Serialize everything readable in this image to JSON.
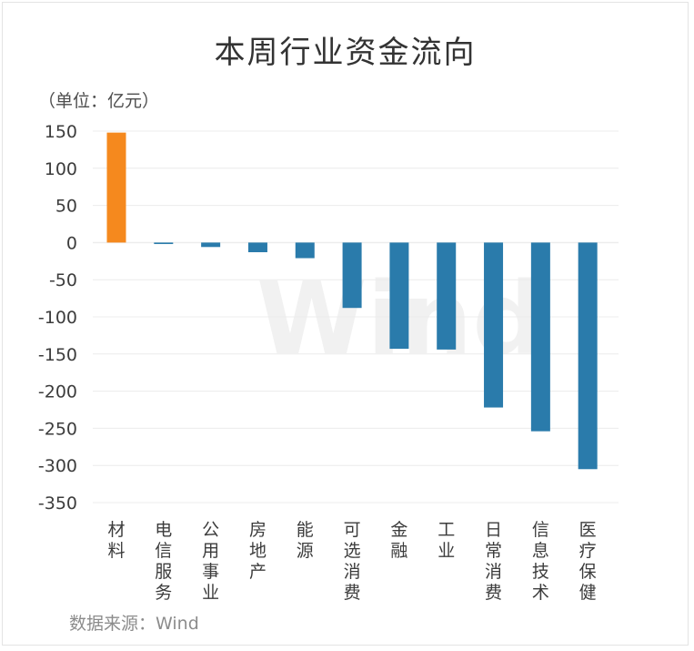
{
  "title": "本周行业资金流向",
  "unit_label": "（单位：亿元）",
  "source_label": "数据来源：Wind",
  "watermark": "Wind",
  "colors": {
    "positive": "#f5891e",
    "negative": "#2a7bab",
    "grid": "#ececec"
  },
  "chart_data": {
    "type": "bar",
    "title": "本周行业资金流向",
    "ylabel": "（单位：亿元）",
    "xlabel": "",
    "ylim": [
      -350,
      150
    ],
    "yticks": [
      150,
      100,
      50,
      0,
      -50,
      -100,
      -150,
      -200,
      -250,
      -300,
      -350
    ],
    "grid": true,
    "categories": [
      "材料",
      "电信服务",
      "公用事业",
      "房地产",
      "能源",
      "可选消费",
      "金融",
      "工业",
      "日常消费",
      "信息技术",
      "医疗保健"
    ],
    "values": [
      148,
      -2,
      -6,
      -13,
      -21,
      -88,
      -143,
      -144,
      -222,
      -254,
      -305
    ]
  }
}
